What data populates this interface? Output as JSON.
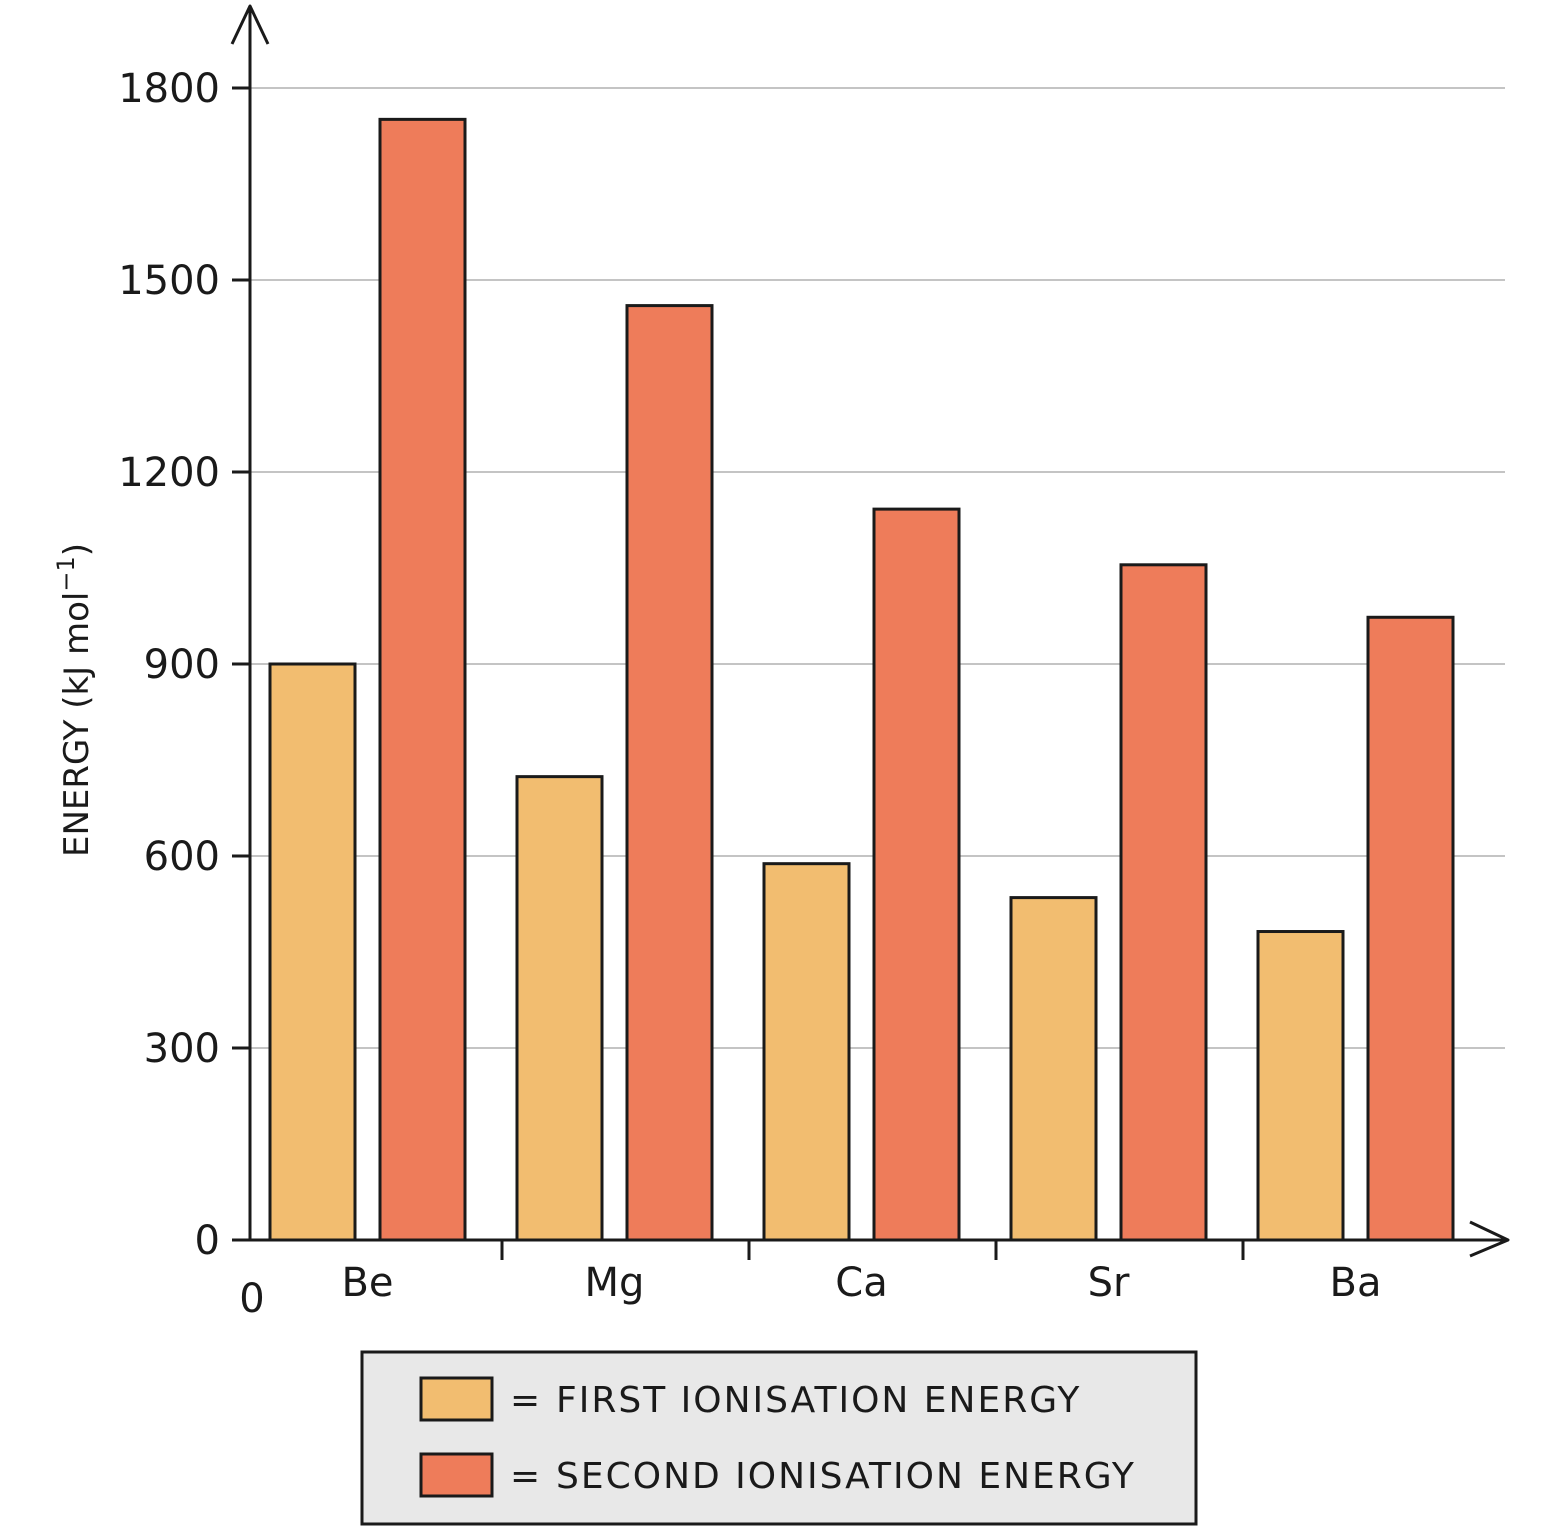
{
  "chart_data": {
    "type": "bar",
    "categories": [
      "Be",
      "Mg",
      "Ca",
      "Sr",
      "Ba"
    ],
    "series": [
      {
        "name": "FIRST IONISATION ENERGY",
        "values": [
          900,
          724,
          588,
          535,
          482
        ],
        "color": "#f2bd70"
      },
      {
        "name": "SECOND IONISATION ENERGY",
        "values": [
          1751,
          1460,
          1142,
          1055,
          973
        ],
        "color": "#ee7c5a"
      }
    ],
    "title": "",
    "xlabel": "",
    "ylabel": "ENERGY (kJ mol",
    "ylabel_sup": "−1",
    "ylabel_close": ")",
    "ylim": [
      0,
      1800
    ],
    "yticks": [
      0,
      300,
      600,
      900,
      1200,
      1500,
      1800
    ],
    "origin_label": "0",
    "grid": true,
    "legend_position": "bottom",
    "legend_prefix": "="
  }
}
